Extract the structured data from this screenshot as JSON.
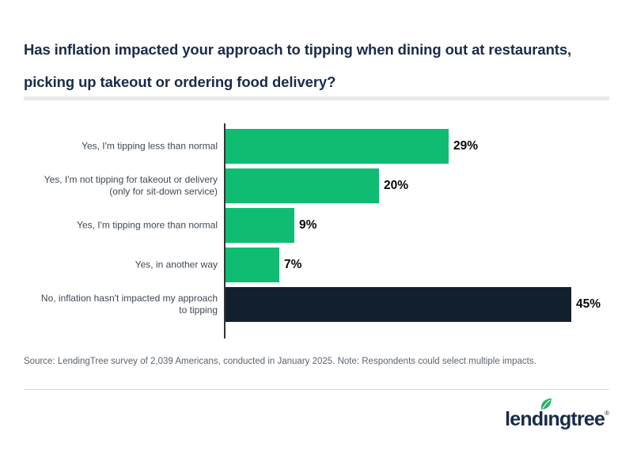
{
  "header": {
    "title_lines": [
      "Has inflation impacted your approach to tipping when dining out at restaurants,",
      "picking up takeout or ordering food delivery?"
    ]
  },
  "chart_data": {
    "type": "bar",
    "orientation": "horizontal",
    "title": "Has inflation impacted your approach to tipping when dining out at restaurants, picking up takeout or ordering food delivery?",
    "categories": [
      "Yes, I'm tipping less than normal",
      "Yes, I'm not tipping for takeout or delivery (only for sit-down service)",
      "Yes, I'm tipping more than normal",
      "Yes, in another way",
      "No, inflation hasn't impacted my approach to tipping"
    ],
    "label_lines": [
      [
        "Yes, I'm tipping less than normal"
      ],
      [
        "Yes, I'm not tipping for takeout or delivery",
        "(only for sit-down service)"
      ],
      [
        "Yes, I'm tipping more than normal"
      ],
      [
        "Yes, in another way"
      ],
      [
        "No, inflation hasn't impacted my approach",
        "to tipping"
      ]
    ],
    "values": [
      29,
      20,
      9,
      7,
      45
    ],
    "value_labels": [
      "29%",
      "20%",
      "9%",
      "7%",
      "45%"
    ],
    "unit": "%",
    "bar_colors": [
      "#10BC71",
      "#10BC71",
      "#10BC71",
      "#10BC71",
      "#121F2D"
    ],
    "legend": "none",
    "grid": "off"
  },
  "footer": {
    "source_note": "Source: LendingTree survey of 2,039 Americans, conducted in January 2025. Note: Respondents could select multiple impacts.",
    "logo": {
      "part1": "lend",
      "dotless_i": "ı",
      "part2": "ngtree",
      "reg": "®"
    }
  },
  "colors": {
    "title_navy": "#1A2B49",
    "bar_green": "#10BC71",
    "bar_navy": "#121F2D",
    "axis": "#333333",
    "category_label": "#3F4A55",
    "value_label": "#0A0A0A",
    "source_gray": "#5B6570",
    "divider_thick": "#E8E8E8",
    "divider_thin": "#D9D9D9",
    "leaf_green": "#2AB169"
  }
}
